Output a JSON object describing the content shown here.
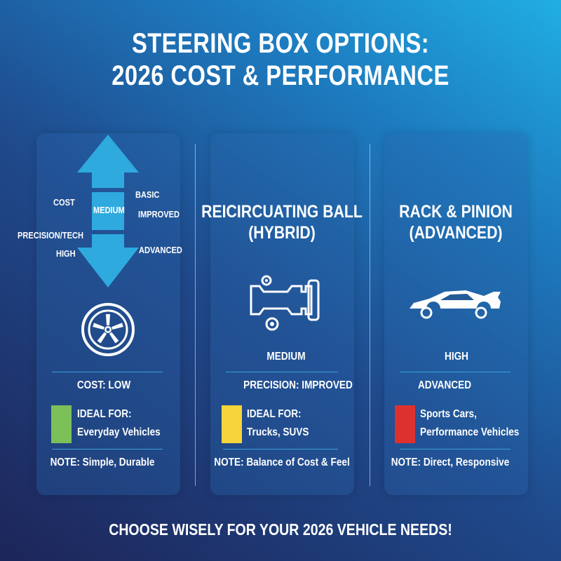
{
  "title": {
    "line1": "STEERING BOX OPTIONS:",
    "line2": "2026 COST & PERFORMANCE"
  },
  "scale": {
    "cost_label": "COST",
    "middle_label": "MEDIUM",
    "basic": "BASIC",
    "improved": "IMPROVED",
    "precision_label": "PRECISION/TECH",
    "high": "HIGH",
    "advanced": "ADVANCED",
    "arrow_color": "#2eaadf",
    "icon": "tire-icon"
  },
  "panels": [
    {
      "cost": "COST: LOW",
      "ideal_line1": "IDEAL FOR:",
      "ideal_line2": "Everyday Vehicles",
      "note": "NOTE: Simple, Durable",
      "swatch_color": "#7cc05a"
    },
    {
      "title_line1": "REICIRCUATING BALL",
      "title_line2": "(HYBRID)",
      "icon": "steering-box-gears-icon",
      "cost": "MEDIUM",
      "precision": "PRECISION: IMPROVED",
      "ideal_line1": "IDEAL FOR:",
      "ideal_line2": "Trucks, SUVS",
      "note": "NOTE: Balance of Cost & Feel",
      "swatch_color": "#f7d53a"
    },
    {
      "title_line1": "RACK & PINION",
      "title_line2": "(ADVANCED)",
      "icon": "sports-car-icon",
      "cost": "HIGH",
      "precision": "ADVANCED",
      "ideal_line1": "Sports Cars,",
      "ideal_line2": "Performance Vehicles",
      "note": "NOTE: Direct, Responsive",
      "swatch_color": "#dd3130"
    }
  ],
  "footer": "CHOOSE WISELY FOR YOUR 2026 VEHICLE NEEDS!"
}
